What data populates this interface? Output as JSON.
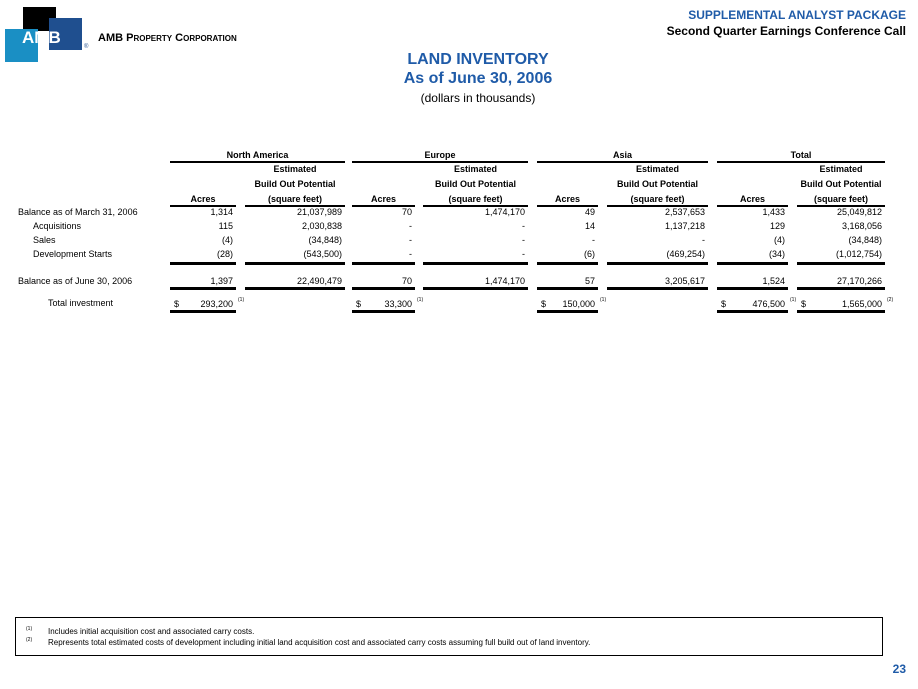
{
  "header": {
    "logo_text": "AMB",
    "company": "AMB Property Corporation",
    "package": "SUPPLEMENTAL ANALYST PACKAGE",
    "call": "Second Quarter Earnings Conference Call"
  },
  "title": "LAND INVENTORY",
  "subtitle": "As of June 30, 2006",
  "units": "(dollars in thousands)",
  "table": {
    "groups": [
      "North America",
      "Europe",
      "Asia",
      "Total"
    ],
    "col_headers": {
      "acres": "Acres",
      "est1": "Estimated",
      "est2": "Build Out Potential",
      "est3": "(square feet)"
    },
    "rows": [
      {
        "label": "Balance as of March 31, 2006",
        "values": [
          "1,314",
          "21,037,989",
          "70",
          "1,474,170",
          "49",
          "2,537,653",
          "1,433",
          "25,049,812"
        ]
      },
      {
        "label": "Acquisitions",
        "values": [
          "115",
          "2,030,838",
          "-",
          "-",
          "14",
          "1,137,218",
          "129",
          "3,168,056"
        ]
      },
      {
        "label": "Sales",
        "values": [
          "(4)",
          "(34,848)",
          "-",
          "-",
          "-",
          "-",
          "(4)",
          "(34,848)"
        ]
      },
      {
        "label": "Development Starts",
        "values": [
          "(28)",
          "(543,500)",
          "-",
          "-",
          "(6)",
          "(469,254)",
          "(34)",
          "(1,012,754)"
        ]
      },
      {
        "label": "Balance as of June 30, 2006",
        "values": [
          "1,397",
          "22,490,479",
          "70",
          "1,474,170",
          "57",
          "3,205,617",
          "1,524",
          "27,170,266"
        ]
      }
    ],
    "investment": {
      "label": "Total investment",
      "currency": "$",
      "values": [
        {
          "value": "293,200",
          "note": "(1)"
        },
        {
          "value": "33,300",
          "note": "(1)"
        },
        {
          "value": "150,000",
          "note": "(1)"
        },
        {
          "value": "476,500",
          "note": "(1)"
        },
        {
          "value": "1,565,000",
          "note": "(2)"
        }
      ]
    }
  },
  "footnotes": [
    {
      "mark": "(1)",
      "text": "Includes initial acquisition cost and associated carry costs."
    },
    {
      "mark": "(2)",
      "text": "Represents total estimated costs of development including initial land acquisition cost and associated carry costs assuming full build out of land inventory."
    }
  ],
  "page_number": "23"
}
